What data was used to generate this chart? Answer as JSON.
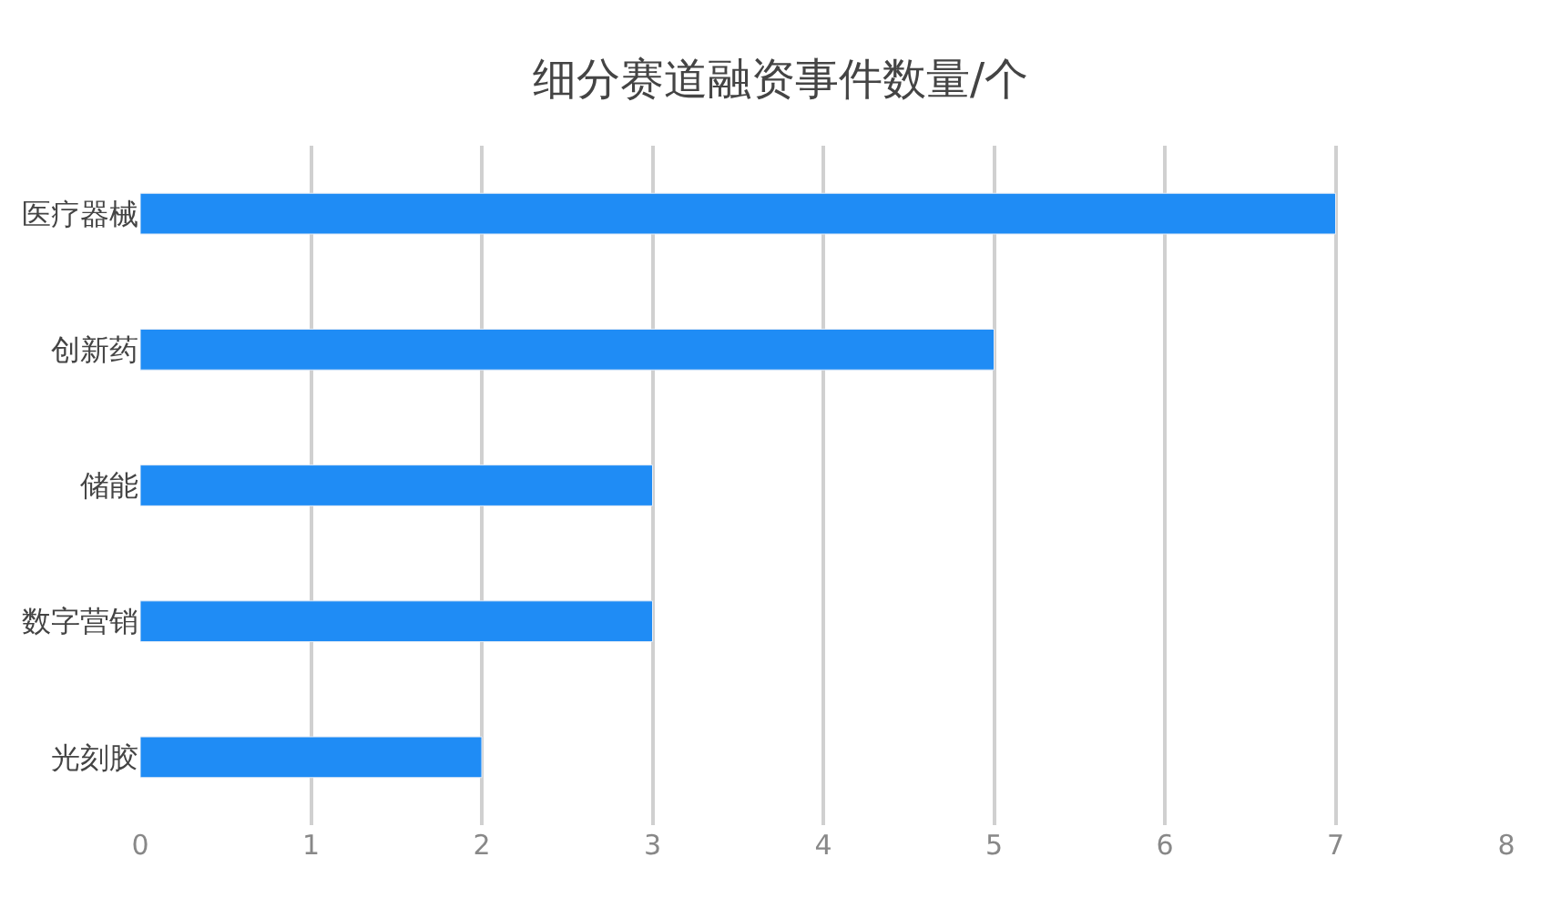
{
  "chart_data": {
    "type": "bar",
    "orientation": "horizontal",
    "title": "细分赛道融资事件数量/个",
    "categories": [
      "医疗器械",
      "创新药",
      "储能",
      "数字营销",
      "光刻胶"
    ],
    "values": [
      7,
      5,
      3,
      3,
      2
    ],
    "color": "#1f8cf5",
    "xlim": [
      0,
      8
    ],
    "xticks": [
      0,
      1,
      2,
      3,
      4,
      5,
      6,
      7,
      8
    ],
    "grid": "x",
    "legend": false
  }
}
